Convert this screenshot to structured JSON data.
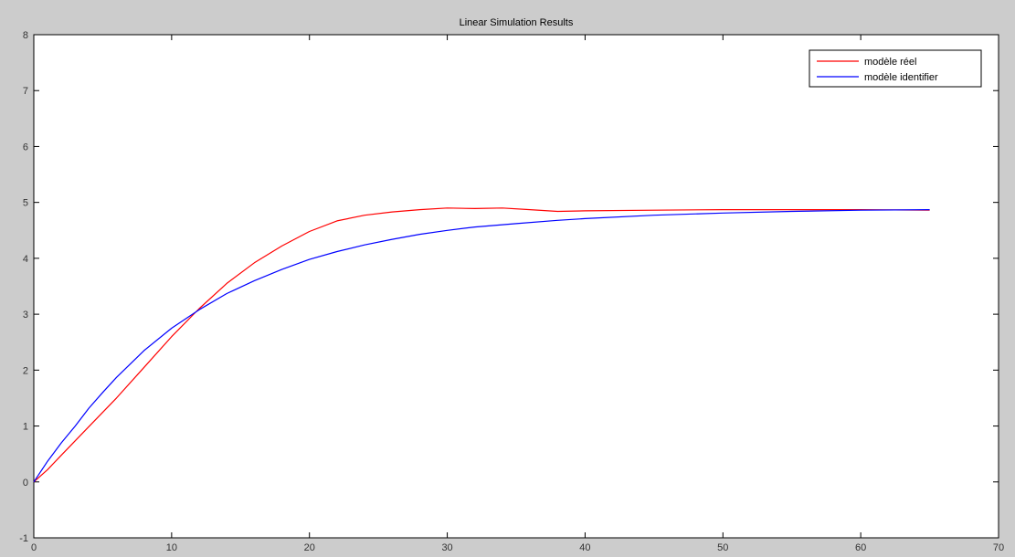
{
  "chart_data": {
    "type": "line",
    "title": "Linear Simulation Results",
    "xlabel": "",
    "ylabel": "",
    "xlim": [
      0,
      70
    ],
    "ylim": [
      -1,
      8
    ],
    "x_ticks": [
      "0",
      "10",
      "20",
      "30",
      "40",
      "50",
      "60",
      "70"
    ],
    "y_ticks": [
      "-1",
      "0",
      "1",
      "2",
      "3",
      "4",
      "5",
      "6",
      "7",
      "8"
    ],
    "grid": false,
    "legend_position": "top-right",
    "series": [
      {
        "name": "modèle réel",
        "color": "#ff0000",
        "x": [
          0,
          1,
          2,
          4,
          6,
          8,
          10,
          12,
          14,
          16,
          18,
          20,
          22,
          24,
          26,
          28,
          30,
          32,
          34,
          36,
          38,
          40,
          45,
          50,
          55,
          60,
          65
        ],
        "y": [
          0,
          0.22,
          0.48,
          0.99,
          1.5,
          2.05,
          2.6,
          3.1,
          3.55,
          3.92,
          4.22,
          4.48,
          4.67,
          4.77,
          4.83,
          4.87,
          4.9,
          4.89,
          4.9,
          4.87,
          4.84,
          4.85,
          4.86,
          4.87,
          4.87,
          4.87,
          4.86
        ]
      },
      {
        "name": "modèle identifier",
        "color": "#0000ff",
        "x": [
          0,
          1,
          2,
          3,
          4,
          5,
          6,
          8,
          10,
          12,
          14,
          16,
          18,
          20,
          22,
          24,
          26,
          28,
          30,
          32,
          35,
          38,
          40,
          45,
          50,
          55,
          60,
          65
        ],
        "y": [
          0,
          0.37,
          0.7,
          1.0,
          1.32,
          1.6,
          1.87,
          2.35,
          2.75,
          3.08,
          3.37,
          3.6,
          3.8,
          3.98,
          4.12,
          4.24,
          4.34,
          4.43,
          4.5,
          4.56,
          4.62,
          4.68,
          4.71,
          4.77,
          4.81,
          4.84,
          4.86,
          4.87
        ]
      }
    ]
  }
}
